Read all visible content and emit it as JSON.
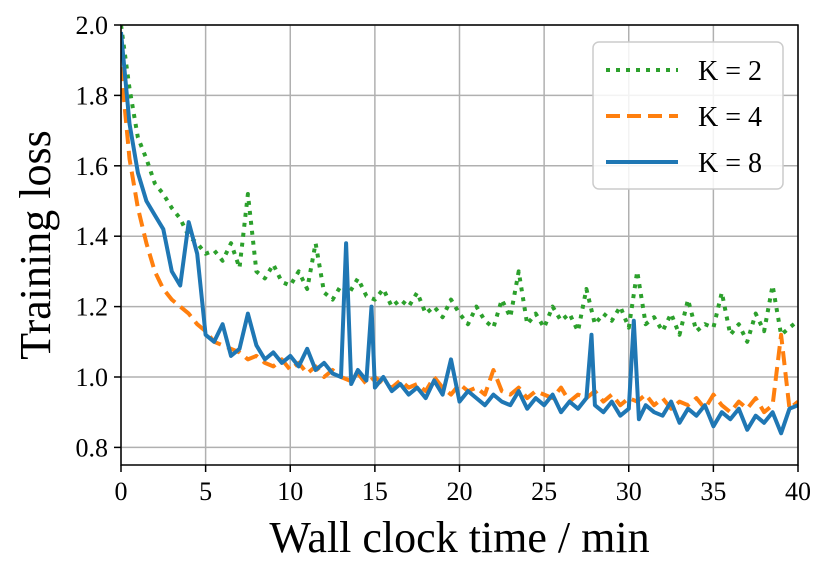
{
  "chart_data": {
    "type": "line",
    "title": "",
    "xlabel": "Wall clock time / min",
    "ylabel": "Training loss",
    "xlim": [
      0,
      40
    ],
    "ylim": [
      0.75,
      2.0
    ],
    "xticks": [
      0,
      5,
      10,
      15,
      20,
      25,
      30,
      35,
      40
    ],
    "xtick_labels": [
      "0",
      "5",
      "10",
      "15",
      "20",
      "25",
      "30",
      "35",
      "40"
    ],
    "yticks": [
      0.8,
      1.0,
      1.2,
      1.4,
      1.6,
      1.8,
      2.0
    ],
    "ytick_labels": [
      "0.8",
      "1.0",
      "1.2",
      "1.4",
      "1.6",
      "1.8",
      "2.0"
    ],
    "grid": true,
    "legend_position": "top-right",
    "series": [
      {
        "name": "K = 2",
        "color": "#2ca02c",
        "style": "dotted",
        "x": [
          0,
          0.5,
          1,
          1.5,
          2,
          2.5,
          3,
          3.5,
          4,
          4.5,
          5,
          5.5,
          6,
          6.5,
          7,
          7.5,
          8,
          8.5,
          9,
          9.5,
          10,
          10.5,
          11,
          11.5,
          12,
          12.5,
          13,
          13.5,
          14,
          14.5,
          15,
          15.5,
          16,
          16.5,
          17,
          17.5,
          18,
          18.5,
          19,
          19.5,
          20,
          20.5,
          21,
          21.5,
          22,
          22.5,
          23,
          23.5,
          24,
          24.5,
          25,
          25.5,
          26,
          26.5,
          27,
          27.5,
          28,
          28.5,
          29,
          29.5,
          30,
          30.5,
          31,
          31.5,
          32,
          32.5,
          33,
          33.5,
          34,
          34.5,
          35,
          35.5,
          36,
          36.5,
          37,
          37.5,
          38,
          38.5,
          39,
          39.5,
          40
        ],
        "values": [
          2.0,
          1.82,
          1.68,
          1.62,
          1.55,
          1.52,
          1.48,
          1.45,
          1.4,
          1.38,
          1.35,
          1.36,
          1.33,
          1.38,
          1.31,
          1.52,
          1.3,
          1.28,
          1.32,
          1.27,
          1.26,
          1.3,
          1.25,
          1.38,
          1.24,
          1.22,
          1.26,
          1.24,
          1.28,
          1.23,
          1.22,
          1.25,
          1.2,
          1.22,
          1.2,
          1.24,
          1.18,
          1.2,
          1.17,
          1.22,
          1.18,
          1.15,
          1.2,
          1.16,
          1.14,
          1.22,
          1.17,
          1.3,
          1.15,
          1.18,
          1.14,
          1.2,
          1.16,
          1.18,
          1.13,
          1.25,
          1.15,
          1.18,
          1.16,
          1.2,
          1.14,
          1.3,
          1.15,
          1.17,
          1.13,
          1.18,
          1.12,
          1.22,
          1.13,
          1.15,
          1.14,
          1.24,
          1.12,
          1.15,
          1.1,
          1.18,
          1.13,
          1.26,
          1.12,
          1.14,
          1.16
        ]
      },
      {
        "name": "K = 4",
        "color": "#ff7f0e",
        "style": "dashed",
        "x": [
          0,
          0.5,
          1,
          1.5,
          2,
          2.5,
          3,
          3.5,
          4,
          4.5,
          5,
          5.5,
          6,
          6.5,
          7,
          7.5,
          8,
          8.5,
          9,
          9.5,
          10,
          10.5,
          11,
          11.5,
          12,
          12.5,
          13,
          13.5,
          14,
          14.5,
          15,
          15.5,
          16,
          16.5,
          17,
          17.5,
          18,
          18.5,
          19,
          19.5,
          20,
          20.5,
          21,
          21.5,
          22,
          22.5,
          23,
          23.5,
          24,
          24.5,
          25,
          25.5,
          26,
          26.5,
          27,
          27.5,
          28,
          28.5,
          29,
          29.5,
          30,
          30.5,
          31,
          31.5,
          32,
          32.5,
          33,
          33.5,
          34,
          34.5,
          35,
          35.5,
          36,
          36.5,
          37,
          37.5,
          38,
          38.5,
          39,
          39.5,
          40
        ],
        "values": [
          1.88,
          1.62,
          1.48,
          1.38,
          1.3,
          1.25,
          1.22,
          1.2,
          1.18,
          1.15,
          1.13,
          1.1,
          1.09,
          1.08,
          1.07,
          1.05,
          1.06,
          1.04,
          1.03,
          1.05,
          1.02,
          1.04,
          1.01,
          1.03,
          1.0,
          1.02,
          1.0,
          0.99,
          1.01,
          0.98,
          1.0,
          0.98,
          0.97,
          0.99,
          0.97,
          0.98,
          0.96,
          1.0,
          0.97,
          0.95,
          0.98,
          0.96,
          0.97,
          0.95,
          1.02,
          0.96,
          0.95,
          0.97,
          0.94,
          0.96,
          0.95,
          0.94,
          0.97,
          0.93,
          0.95,
          0.94,
          0.96,
          0.93,
          0.95,
          0.92,
          0.94,
          0.93,
          0.95,
          0.92,
          0.94,
          0.91,
          0.93,
          0.92,
          0.94,
          0.91,
          0.95,
          0.92,
          0.9,
          0.93,
          0.91,
          0.94,
          0.9,
          0.92,
          1.12,
          0.91,
          0.93
        ]
      },
      {
        "name": "K = 8",
        "color": "#1f77b4",
        "style": "solid",
        "x": [
          0,
          0.5,
          1,
          1.5,
          2,
          2.5,
          3,
          3.5,
          4,
          4.5,
          5,
          5.5,
          6,
          6.5,
          7,
          7.5,
          8,
          8.5,
          9,
          9.5,
          10,
          10.5,
          11,
          11.5,
          12,
          12.5,
          13,
          13.3,
          13.6,
          14,
          14.5,
          14.8,
          15,
          15.5,
          16,
          16.5,
          17,
          17.5,
          18,
          18.5,
          19,
          19.5,
          20,
          20.5,
          21,
          21.5,
          22,
          22.5,
          23,
          23.5,
          24,
          24.5,
          25,
          25.5,
          26,
          26.5,
          27,
          27.5,
          27.8,
          28,
          28.5,
          29,
          29.5,
          30,
          30.3,
          30.6,
          31,
          31.5,
          32,
          32.5,
          33,
          33.5,
          34,
          34.5,
          35,
          35.5,
          36,
          36.5,
          37,
          37.5,
          38,
          38.5,
          39,
          39.5,
          40
        ],
        "values": [
          1.98,
          1.72,
          1.58,
          1.5,
          1.46,
          1.42,
          1.3,
          1.26,
          1.44,
          1.35,
          1.12,
          1.1,
          1.15,
          1.06,
          1.08,
          1.18,
          1.09,
          1.05,
          1.07,
          1.04,
          1.06,
          1.03,
          1.08,
          1.02,
          1.04,
          1.01,
          1.0,
          1.38,
          0.98,
          1.02,
          0.99,
          1.2,
          0.97,
          1.0,
          0.96,
          0.98,
          0.95,
          0.97,
          0.94,
          0.99,
          0.95,
          1.05,
          0.93,
          0.96,
          0.94,
          0.92,
          0.95,
          0.93,
          0.92,
          0.96,
          0.91,
          0.94,
          0.92,
          0.95,
          0.9,
          0.93,
          0.91,
          0.94,
          1.12,
          0.92,
          0.9,
          0.93,
          0.89,
          0.91,
          1.16,
          0.88,
          0.92,
          0.9,
          0.89,
          0.93,
          0.87,
          0.91,
          0.89,
          0.92,
          0.86,
          0.9,
          0.88,
          0.91,
          0.85,
          0.89,
          0.87,
          0.9,
          0.84,
          0.91,
          0.92
        ]
      }
    ]
  }
}
